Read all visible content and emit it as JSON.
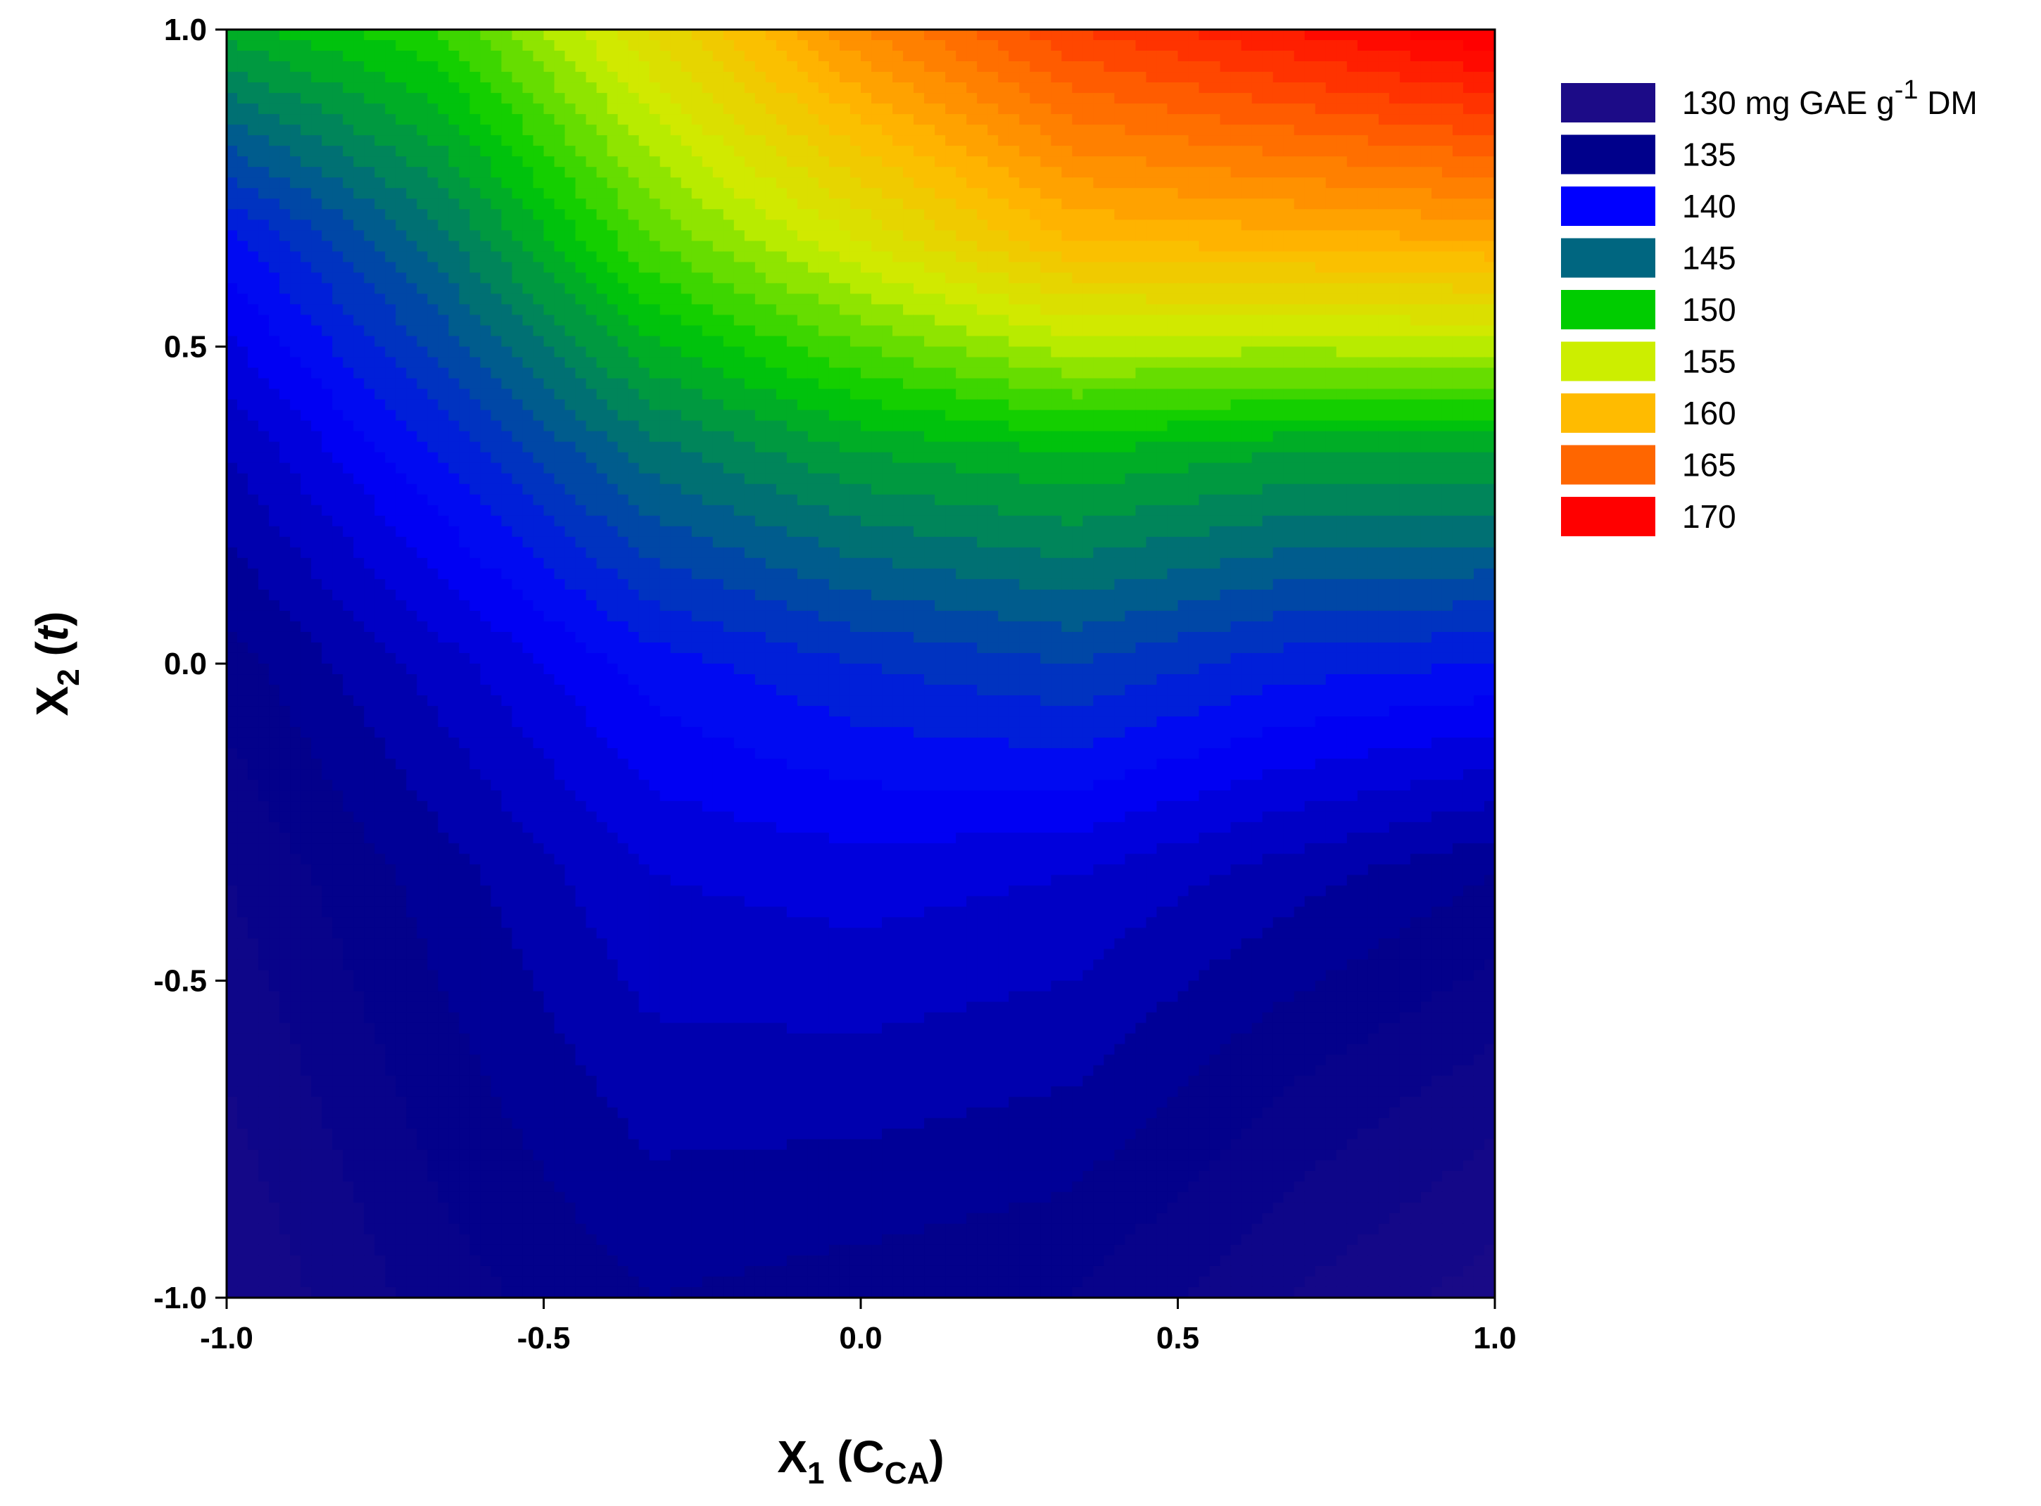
{
  "chart_data": {
    "type": "heatmap",
    "subtype": "filled-contour",
    "x_axis": {
      "label_main": "X",
      "label_sub": "1",
      "label_var": "C",
      "label_var_sub": "CA",
      "lim": [
        -1.0,
        1.0
      ],
      "ticks": [
        -1.0,
        -0.5,
        0.0,
        0.5,
        1.0
      ],
      "tick_labels": [
        "-1.0",
        "-0.5",
        "0.0",
        "0.5",
        "1.0"
      ]
    },
    "y_axis": {
      "label_main": "X",
      "label_sub": "2",
      "label_var": "t",
      "lim": [
        -1.0,
        1.0
      ],
      "ticks": [
        -1.0,
        -0.5,
        0.0,
        0.5,
        1.0
      ],
      "tick_labels": [
        "-1.0",
        "-0.5",
        "0.0",
        "0.5",
        "1.0"
      ]
    },
    "grid": false,
    "legend_position": "right",
    "legend": [
      {
        "value": 130,
        "label": "130",
        "unit": "mg GAE g",
        "unit_sup": "-1",
        "unit_tail": "DM",
        "color": "#1c0b87"
      },
      {
        "value": 135,
        "label": "135",
        "color": "#00008b"
      },
      {
        "value": 140,
        "label": "140",
        "color": "#0000ff"
      },
      {
        "value": 145,
        "label": "145",
        "color": "#006680"
      },
      {
        "value": 150,
        "label": "150",
        "color": "#00cc00"
      },
      {
        "value": 155,
        "label": "155",
        "color": "#ccee00"
      },
      {
        "value": 160,
        "label": "160",
        "color": "#ffbb00"
      },
      {
        "value": 165,
        "label": "165",
        "color": "#ff6600"
      },
      {
        "value": 170,
        "label": "170",
        "color": "#ff0000"
      }
    ],
    "x_grid": [
      -1.0,
      -0.667,
      -0.333,
      0.0,
      0.333,
      0.667,
      1.0
    ],
    "y_grid": [
      -1.0,
      -0.667,
      -0.333,
      0.0,
      0.333,
      0.667,
      1.0
    ],
    "z_grid": [
      [
        131.0,
        133.5,
        135.0,
        134.5,
        134.0,
        132.0,
        130.5
      ],
      [
        132.0,
        134.5,
        136.5,
        136.5,
        136.0,
        134.0,
        132.5
      ],
      [
        133.0,
        135.5,
        138.0,
        138.5,
        138.0,
        136.5,
        135.0
      ],
      [
        134.5,
        137.5,
        140.5,
        142.0,
        143.0,
        141.5,
        141.0
      ],
      [
        137.0,
        141.0,
        145.5,
        148.0,
        149.0,
        148.0,
        148.0
      ],
      [
        140.5,
        145.5,
        152.0,
        156.0,
        160.0,
        160.5,
        161.0
      ],
      [
        148.5,
        151.0,
        157.0,
        163.0,
        167.0,
        169.0,
        171.0
      ]
    ]
  }
}
